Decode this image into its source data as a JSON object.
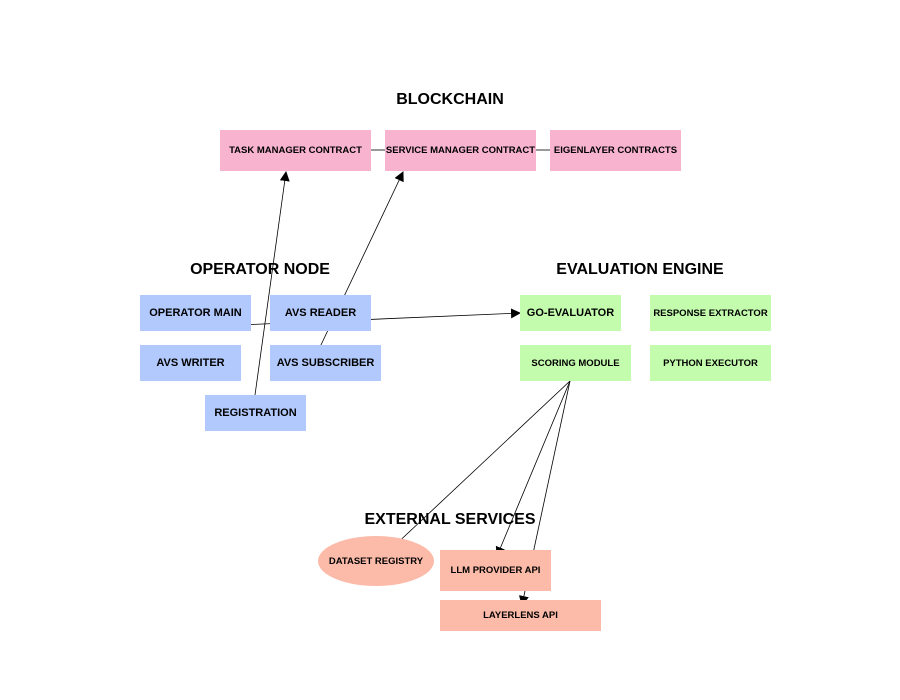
{
  "groups": {
    "blockchain": "BLOCKCHAIN",
    "operator_node": "OPERATOR NODE",
    "evaluation_engine": "EVALUATION ENGINE",
    "external_services": "EXTERNAL SERVICES"
  },
  "nodes": {
    "task_manager_contract": "TASK MANAGER CONTRACT",
    "service_manager_contract": "SERVICE MANAGER CONTRACT",
    "eigenlayer_contracts": "EIGENLAYER CONTRACTS",
    "operator_main": "OPERATOR MAIN",
    "avs_reader": "AVS READER",
    "avs_writer": "AVS WRITER",
    "avs_subscriber": "AVS SUBSCRIBER",
    "registration": "REGISTRATION",
    "go_evaluator": "GO-EVALUATOR",
    "response_extractor": "RESPONSE EXTRACTOR",
    "scoring_module": "SCORING MODULE",
    "python_executor": "PYTHON EXECUTOR",
    "dataset_registry": "DATASET REGISTRY",
    "llm_provider_api": "LLM PROVIDER API",
    "layerlens_api": "LAYERLENS API"
  },
  "colors": {
    "blockchain": "#f8b4cf",
    "operator_node": "#b1c9fc",
    "evaluation_engine": "#c4fcae",
    "external_services": "#fcbba9",
    "edge": "#000000"
  }
}
